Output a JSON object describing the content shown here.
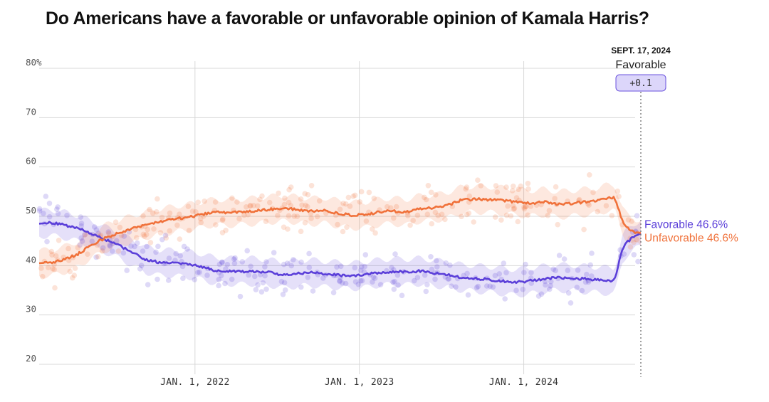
{
  "title": "Do Americans have a favorable or unfavorable opinion of Kamala Harris?",
  "annotation": {
    "date": "SEPT. 17, 2024",
    "series": "Favorable",
    "value": "+0.1"
  },
  "chart_data": {
    "type": "line",
    "title": "Do Americans have a favorable or unfavorable opinion of Kamala Harris?",
    "x_range": [
      "2021-01-20",
      "2024-09-17"
    ],
    "ylim": [
      20,
      80
    ],
    "y_ticks": [
      {
        "value": 80,
        "label": "80%"
      },
      {
        "value": 70,
        "label": "70"
      },
      {
        "value": 60,
        "label": "60"
      },
      {
        "value": 50,
        "label": "50"
      },
      {
        "value": 40,
        "label": "40"
      },
      {
        "value": 30,
        "label": "30"
      },
      {
        "value": 20,
        "label": "20"
      }
    ],
    "x_ticks": [
      {
        "date": "2022-01-01",
        "label": "JAN. 1, 2022"
      },
      {
        "date": "2023-01-01",
        "label": "JAN. 1, 2023"
      },
      {
        "date": "2024-01-01",
        "label": "JAN. 1, 2024"
      }
    ],
    "grid": true,
    "series": [
      {
        "name": "Favorable",
        "color": "#5b3fd9",
        "end_label": "Favorable 46.6%",
        "points": [
          [
            "2021-01-20",
            48.5
          ],
          [
            "2021-02-15",
            48.7
          ],
          [
            "2021-03-15",
            48.3
          ],
          [
            "2021-04-15",
            47.6
          ],
          [
            "2021-05-15",
            46.5
          ],
          [
            "2021-06-15",
            45.3
          ],
          [
            "2021-07-15",
            44.2
          ],
          [
            "2021-08-15",
            42.6
          ],
          [
            "2021-09-15",
            41.2
          ],
          [
            "2021-10-15",
            40.6
          ],
          [
            "2021-11-15",
            40.5
          ],
          [
            "2021-12-15",
            40.3
          ],
          [
            "2022-01-15",
            39.8
          ],
          [
            "2022-02-15",
            39.0
          ],
          [
            "2022-03-15",
            38.9
          ],
          [
            "2022-04-15",
            38.8
          ],
          [
            "2022-05-15",
            38.9
          ],
          [
            "2022-06-15",
            38.6
          ],
          [
            "2022-07-15",
            38.1
          ],
          [
            "2022-08-15",
            38.4
          ],
          [
            "2022-09-15",
            38.6
          ],
          [
            "2022-10-15",
            38.3
          ],
          [
            "2022-11-15",
            38.1
          ],
          [
            "2022-12-15",
            37.9
          ],
          [
            "2023-01-15",
            38.2
          ],
          [
            "2023-02-15",
            38.6
          ],
          [
            "2023-03-15",
            38.8
          ],
          [
            "2023-04-15",
            38.7
          ],
          [
            "2023-05-15",
            38.9
          ],
          [
            "2023-06-15",
            38.5
          ],
          [
            "2023-07-15",
            38.2
          ],
          [
            "2023-08-15",
            37.6
          ],
          [
            "2023-09-15",
            37.4
          ],
          [
            "2023-10-15",
            37.2
          ],
          [
            "2023-11-15",
            36.9
          ],
          [
            "2023-12-15",
            36.6
          ],
          [
            "2024-01-15",
            36.9
          ],
          [
            "2024-02-15",
            37.3
          ],
          [
            "2024-03-15",
            37.6
          ],
          [
            "2024-04-15",
            37.5
          ],
          [
            "2024-05-15",
            37.3
          ],
          [
            "2024-06-15",
            37.1
          ],
          [
            "2024-07-05",
            37.0
          ],
          [
            "2024-07-18",
            36.9
          ],
          [
            "2024-07-22",
            37.5
          ],
          [
            "2024-07-28",
            39.5
          ],
          [
            "2024-08-05",
            43.0
          ],
          [
            "2024-08-15",
            44.5
          ],
          [
            "2024-08-25",
            45.3
          ],
          [
            "2024-09-05",
            46.0
          ],
          [
            "2024-09-17",
            46.6
          ]
        ]
      },
      {
        "name": "Unfavorable",
        "color": "#f0713a",
        "end_label": "Unfavorable 46.6%",
        "points": [
          [
            "2021-01-20",
            40.5
          ],
          [
            "2021-02-15",
            40.6
          ],
          [
            "2021-03-15",
            41.2
          ],
          [
            "2021-04-15",
            42.3
          ],
          [
            "2021-05-15",
            44.1
          ],
          [
            "2021-06-15",
            45.6
          ],
          [
            "2021-07-15",
            46.6
          ],
          [
            "2021-08-15",
            47.5
          ],
          [
            "2021-09-15",
            48.3
          ],
          [
            "2021-10-15",
            48.9
          ],
          [
            "2021-11-15",
            49.4
          ],
          [
            "2021-12-15",
            49.8
          ],
          [
            "2022-01-15",
            50.3
          ],
          [
            "2022-02-15",
            50.9
          ],
          [
            "2022-03-15",
            50.7
          ],
          [
            "2022-04-15",
            50.9
          ],
          [
            "2022-05-15",
            51.1
          ],
          [
            "2022-06-15",
            51.4
          ],
          [
            "2022-07-15",
            51.6
          ],
          [
            "2022-08-15",
            51.4
          ],
          [
            "2022-09-15",
            51.0
          ],
          [
            "2022-10-15",
            51.2
          ],
          [
            "2022-11-15",
            50.6
          ],
          [
            "2022-12-15",
            50.2
          ],
          [
            "2023-01-15",
            50.3
          ],
          [
            "2023-02-15",
            50.9
          ],
          [
            "2023-03-15",
            51.1
          ],
          [
            "2023-04-15",
            50.8
          ],
          [
            "2023-05-15",
            51.6
          ],
          [
            "2023-06-15",
            51.7
          ],
          [
            "2023-07-15",
            52.2
          ],
          [
            "2023-08-15",
            53.3
          ],
          [
            "2023-09-15",
            53.5
          ],
          [
            "2023-10-15",
            53.4
          ],
          [
            "2023-11-15",
            53.2
          ],
          [
            "2023-12-15",
            52.9
          ],
          [
            "2024-01-15",
            52.6
          ],
          [
            "2024-02-15",
            52.9
          ],
          [
            "2024-03-15",
            52.4
          ],
          [
            "2024-04-15",
            52.6
          ],
          [
            "2024-05-15",
            52.9
          ],
          [
            "2024-06-15",
            53.1
          ],
          [
            "2024-07-05",
            53.8
          ],
          [
            "2024-07-18",
            53.8
          ],
          [
            "2024-07-22",
            53.5
          ],
          [
            "2024-07-28",
            52.0
          ],
          [
            "2024-08-05",
            49.5
          ],
          [
            "2024-08-15",
            48.0
          ],
          [
            "2024-08-25",
            47.2
          ],
          [
            "2024-09-05",
            46.8
          ],
          [
            "2024-09-17",
            46.6
          ]
        ]
      }
    ]
  }
}
